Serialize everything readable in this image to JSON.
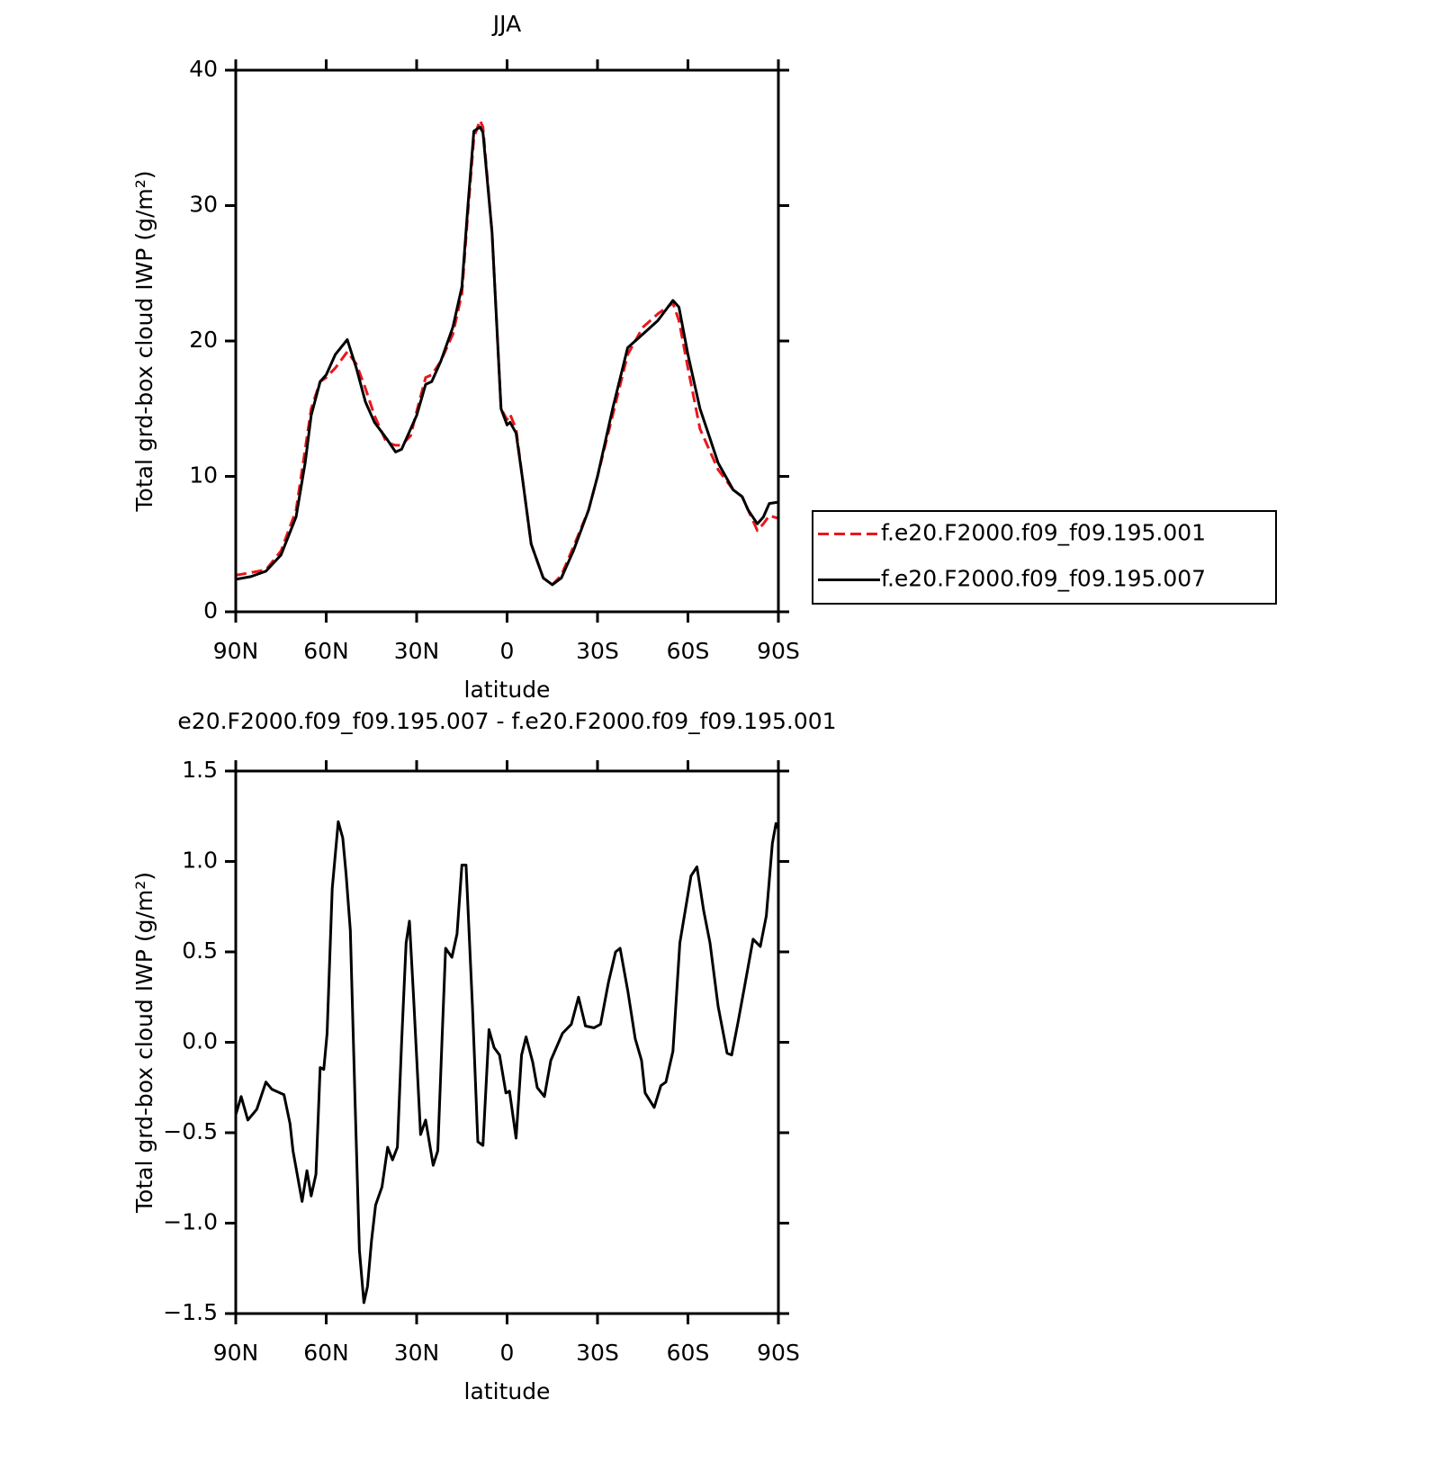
{
  "chart_data": [
    {
      "type": "line",
      "title": "JJA",
      "xlabel": "latitude",
      "ylabel": "Total grd-box cloud IWP (g/m²)",
      "x": [
        90,
        85,
        80,
        75,
        70,
        67,
        65,
        62,
        60,
        57,
        53,
        50,
        47,
        44,
        40,
        37,
        35,
        32,
        30,
        27,
        25,
        22,
        18,
        15,
        13,
        11,
        9,
        8,
        5,
        2,
        0,
        -1,
        -3,
        -5,
        -8,
        -12,
        -15,
        -18,
        -22,
        -27,
        -30,
        -35,
        -40,
        -45,
        -50,
        -55,
        -57,
        -60,
        -64,
        -67,
        -70,
        -75,
        -78,
        -80,
        -83,
        -85,
        -87,
        -90
      ],
      "series": [
        {
          "name": "f.e20.F2000.f09_f09.195.001",
          "color": "#e8161c",
          "dash": true,
          "values": [
            2.7,
            2.9,
            3.1,
            4.5,
            7.5,
            12,
            15,
            17,
            17.3,
            18,
            19.2,
            18.3,
            16.5,
            14.5,
            12.5,
            12.3,
            12.3,
            13,
            14.8,
            17.3,
            17.5,
            18.5,
            20.5,
            23.5,
            29.5,
            35,
            36.3,
            35.8,
            28,
            15,
            14.2,
            14.6,
            13.5,
            10,
            5,
            2.5,
            2,
            2.7,
            4.8,
            7.5,
            10,
            14.5,
            19,
            21,
            22,
            22.8,
            21.5,
            18,
            13.5,
            12,
            10.5,
            9,
            8.5,
            7.5,
            6,
            6.5,
            7.1,
            6.9
          ]
        },
        {
          "name": "f.e20.F2000.f09_f09.195.007",
          "color": "#000000",
          "dash": false,
          "values": [
            2.4,
            2.6,
            3.0,
            4.2,
            7,
            11,
            14.5,
            17,
            17.5,
            19,
            20.1,
            18,
            15.5,
            14,
            12.8,
            11.8,
            12,
            13.5,
            14.5,
            16.8,
            17,
            18.5,
            21,
            24,
            30,
            35.5,
            35.8,
            35.4,
            28,
            15,
            13.8,
            14,
            13.2,
            10,
            5,
            2.5,
            2,
            2.5,
            4.5,
            7.5,
            10,
            15,
            19.5,
            20.5,
            21.5,
            23,
            22.5,
            19,
            15,
            13,
            11,
            9,
            8.5,
            7.5,
            6.5,
            7,
            8,
            8.1
          ]
        }
      ],
      "xlim": [
        90,
        -90
      ],
      "xticks": [
        {
          "value": 90,
          "label": "90N"
        },
        {
          "value": 60,
          "label": "60N"
        },
        {
          "value": 30,
          "label": "30N"
        },
        0,
        {
          "value": -30,
          "label": "30S"
        },
        {
          "value": -60,
          "label": "60S"
        },
        {
          "value": -90,
          "label": "90S"
        }
      ],
      "ylim": [
        0,
        40
      ],
      "yticks": [
        0,
        10,
        20,
        30,
        40
      ],
      "legend": "right"
    },
    {
      "type": "line",
      "title": "e20.F2000.f09_f09.195.007 - f.e20.F2000.f09_f09.195.001",
      "xlabel": "latitude",
      "ylabel": "Total grd-box cloud IWP (g/m²)",
      "x": [
        90,
        88.2,
        86,
        83,
        80,
        78,
        74,
        72,
        71,
        68,
        66.4,
        65,
        63.4,
        62,
        60.8,
        59.7,
        58,
        56,
        54.5,
        53.4,
        52,
        50.4,
        49,
        47.5,
        46.3,
        45,
        43.6,
        41.5,
        39.6,
        38,
        36.4,
        35,
        33.5,
        32.4,
        31,
        28.7,
        27,
        24.5,
        23,
        21.6,
        20.4,
        18.3,
        16.6,
        15,
        13.6,
        11.5,
        9.7,
        8,
        6,
        4.3,
        2.5,
        0.4,
        -0.8,
        -3,
        -4.8,
        -6.3,
        -8.5,
        -10,
        -12.4,
        -14.5,
        -18.4,
        -21.3,
        -23.7,
        -26,
        -28.8,
        -31,
        -33.6,
        -36,
        -37.5,
        -40.1,
        -42.5,
        -44.6,
        -45.8,
        -48.8,
        -51,
        -52.7,
        -55,
        -57.3,
        -61,
        -63,
        -65.2,
        -67.3,
        -70,
        -73,
        -74.5,
        -76.6,
        -78.7,
        -81.6,
        -84,
        -86,
        -88,
        -89.2,
        -90
      ],
      "series": [
        {
          "name": null,
          "color": "#000000",
          "dash": false,
          "values": [
            -0.4,
            -0.3,
            -0.43,
            -0.37,
            -0.22,
            -0.26,
            -0.29,
            -0.45,
            -0.6,
            -0.88,
            -0.71,
            -0.85,
            -0.73,
            -0.14,
            -0.15,
            0.05,
            0.85,
            1.22,
            1.13,
            0.93,
            0.62,
            -0.35,
            -1.15,
            -1.44,
            -1.35,
            -1.1,
            -0.9,
            -0.8,
            -0.58,
            -0.65,
            -0.58,
            0.0,
            0.55,
            0.67,
            0.25,
            -0.51,
            -0.43,
            -0.68,
            -0.6,
            0.0,
            0.52,
            0.47,
            0.6,
            0.98,
            0.98,
            0.2,
            -0.55,
            -0.57,
            0.07,
            -0.03,
            -0.07,
            -0.28,
            -0.27,
            -0.53,
            -0.07,
            0.03,
            -0.11,
            -0.25,
            -0.3,
            -0.1,
            0.05,
            0.1,
            0.25,
            0.09,
            0.08,
            0.1,
            0.33,
            0.5,
            0.52,
            0.28,
            0.02,
            -0.1,
            -0.28,
            -0.36,
            -0.24,
            -0.22,
            -0.05,
            0.55,
            0.92,
            0.97,
            0.73,
            0.55,
            0.2,
            -0.06,
            -0.07,
            0.11,
            0.3,
            0.57,
            0.53,
            0.7,
            1.1,
            1.21,
            1.18
          ]
        }
      ],
      "xlim": [
        90,
        -90
      ],
      "xticks": [
        {
          "value": 90,
          "label": "90N"
        },
        {
          "value": 60,
          "label": "60N"
        },
        {
          "value": 30,
          "label": "30N"
        },
        0,
        {
          "value": -30,
          "label": "30S"
        },
        {
          "value": -60,
          "label": "60S"
        },
        {
          "value": -90,
          "label": "90S"
        }
      ],
      "ylim": [
        -1.5,
        1.5
      ],
      "yticks": [
        {
          "value": -1.5,
          "label": "−1.5"
        },
        {
          "value": -1.0,
          "label": "−1.0"
        },
        {
          "value": -0.5,
          "label": "−0.5"
        },
        {
          "value": 0,
          "label": "0.0"
        },
        0.5,
        {
          "value": 1.0,
          "label": "1.0"
        },
        1.5
      ]
    }
  ]
}
